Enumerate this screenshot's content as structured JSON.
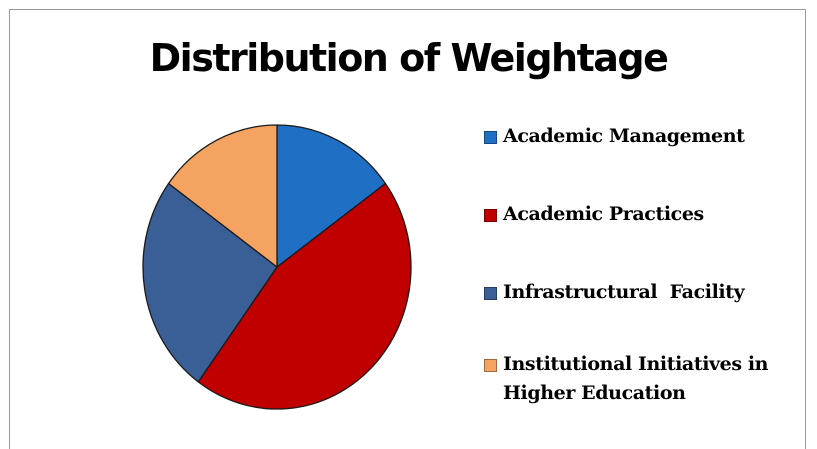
{
  "chart_data": {
    "type": "pie",
    "title": "Distribution of Weightage",
    "legend_position": "right",
    "series": [
      {
        "name": "Academic Management",
        "value": 15,
        "color": "#1f6fc5"
      },
      {
        "name": "Academic Practices",
        "value": 45,
        "color": "#c00000"
      },
      {
        "name": "Infrastructural  Facility",
        "value": 25,
        "color": "#3a5f97"
      },
      {
        "name": "Institutional Initiatives in\nHigher Education",
        "value": 15,
        "color": "#f4a460"
      }
    ]
  }
}
